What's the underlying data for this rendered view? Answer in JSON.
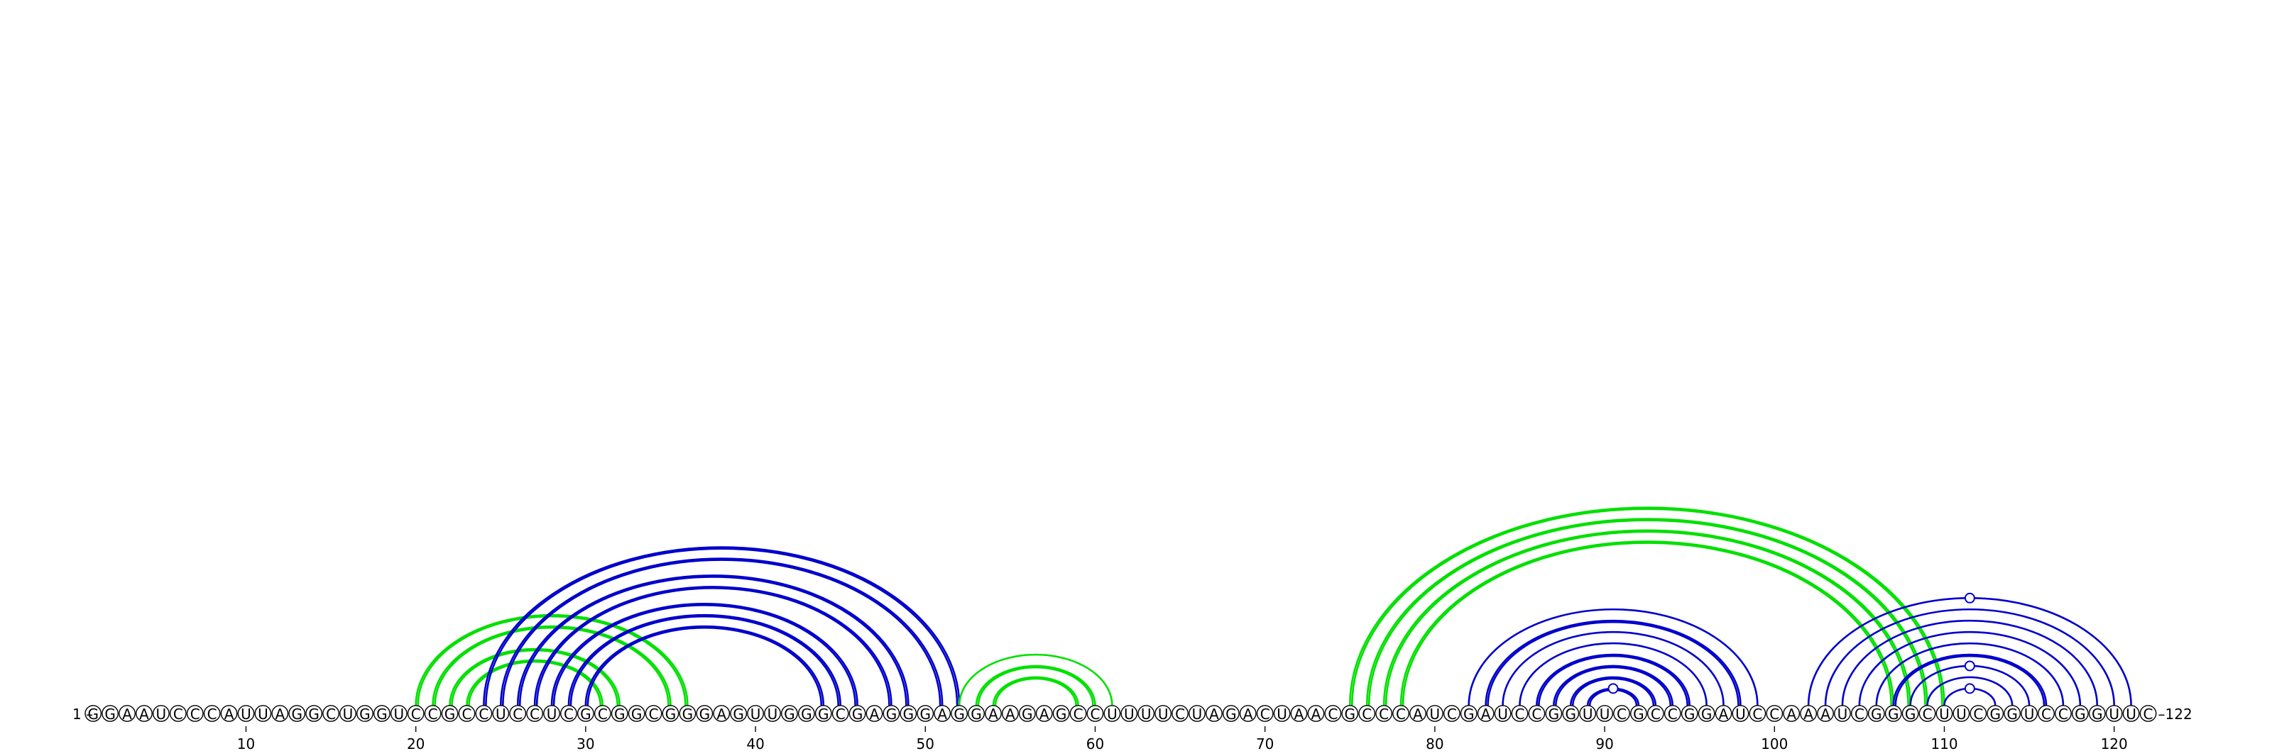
{
  "sequence": "GGAAUCCCAUUAGGCUGGUCCGCCUCCUCGCGGCGGGAGUUGGGCGAGGGAGGAAGAGCCUUUUCUAGACUAACGCCCAUCGAUCCGGUUCGCCGGAUCCAAAUCGGGCUUCGGUCCGGUUC",
  "start_label": "1 –",
  "end_label": "–122",
  "tick_positions": [
    10,
    20,
    30,
    40,
    50,
    60,
    70,
    80,
    90,
    100,
    110,
    120
  ],
  "tick_labels": [
    "10",
    "20",
    "30",
    "40",
    "50",
    "60",
    "70",
    "80",
    "90",
    "100",
    "110",
    "120"
  ],
  "colors": {
    "blue": "#0000cc",
    "green": "#00e000"
  },
  "arcs": [
    {
      "i": 20,
      "j": 36,
      "color": "green",
      "double": true
    },
    {
      "i": 21,
      "j": 35,
      "color": "green",
      "double": true
    },
    {
      "i": 22,
      "j": 32,
      "color": "green",
      "double": true
    },
    {
      "i": 23,
      "j": 31,
      "color": "green",
      "double": true
    },
    {
      "i": 24,
      "j": 52,
      "color": "blue",
      "double": true
    },
    {
      "i": 25,
      "j": 51,
      "color": "blue",
      "double": true
    },
    {
      "i": 26,
      "j": 49,
      "color": "blue",
      "double": true
    },
    {
      "i": 27,
      "j": 48,
      "color": "blue",
      "double": true
    },
    {
      "i": 28,
      "j": 46,
      "color": "blue",
      "double": true
    },
    {
      "i": 29,
      "j": 45,
      "color": "blue",
      "double": true
    },
    {
      "i": 30,
      "j": 44,
      "color": "blue",
      "double": true
    },
    {
      "i": 52,
      "j": 61,
      "color": "green",
      "double": false
    },
    {
      "i": 53,
      "j": 60,
      "color": "green",
      "double": true
    },
    {
      "i": 54,
      "j": 59,
      "color": "green",
      "double": true
    },
    {
      "i": 75,
      "j": 110,
      "color": "green",
      "double": true
    },
    {
      "i": 76,
      "j": 109,
      "color": "green",
      "double": true
    },
    {
      "i": 77,
      "j": 108,
      "color": "green",
      "double": true
    },
    {
      "i": 78,
      "j": 107,
      "color": "green",
      "double": true
    },
    {
      "i": 82,
      "j": 99,
      "color": "blue",
      "double": false
    },
    {
      "i": 83,
      "j": 98,
      "color": "blue",
      "double": true
    },
    {
      "i": 84,
      "j": 97,
      "color": "blue",
      "double": false
    },
    {
      "i": 85,
      "j": 96,
      "color": "blue",
      "double": false
    },
    {
      "i": 86,
      "j": 95,
      "color": "blue",
      "double": true
    },
    {
      "i": 87,
      "j": 94,
      "color": "blue",
      "double": true
    },
    {
      "i": 88,
      "j": 93,
      "color": "blue",
      "double": true
    },
    {
      "i": 89,
      "j": 92,
      "color": "blue",
      "double": true
    },
    {
      "i": 102,
      "j": 121,
      "color": "blue",
      "double": false
    },
    {
      "i": 103,
      "j": 120,
      "color": "blue",
      "double": false
    },
    {
      "i": 104,
      "j": 119,
      "color": "blue",
      "double": false
    },
    {
      "i": 105,
      "j": 118,
      "color": "blue",
      "double": false
    },
    {
      "i": 106,
      "j": 117,
      "color": "blue",
      "double": false
    },
    {
      "i": 107,
      "j": 116,
      "color": "blue",
      "double": true
    },
    {
      "i": 108,
      "j": 115,
      "color": "blue",
      "double": false
    },
    {
      "i": 109,
      "j": 114,
      "color": "blue",
      "double": false
    },
    {
      "i": 110,
      "j": 113,
      "color": "blue",
      "double": false
    }
  ],
  "markers": [
    {
      "center": 90.5,
      "span": 3,
      "color": "blue"
    },
    {
      "center": 111.5,
      "span": 3,
      "color": "blue"
    },
    {
      "center": 111.5,
      "span": 7,
      "color": "blue"
    },
    {
      "center": 111.5,
      "span": 19,
      "color": "blue"
    }
  ]
}
